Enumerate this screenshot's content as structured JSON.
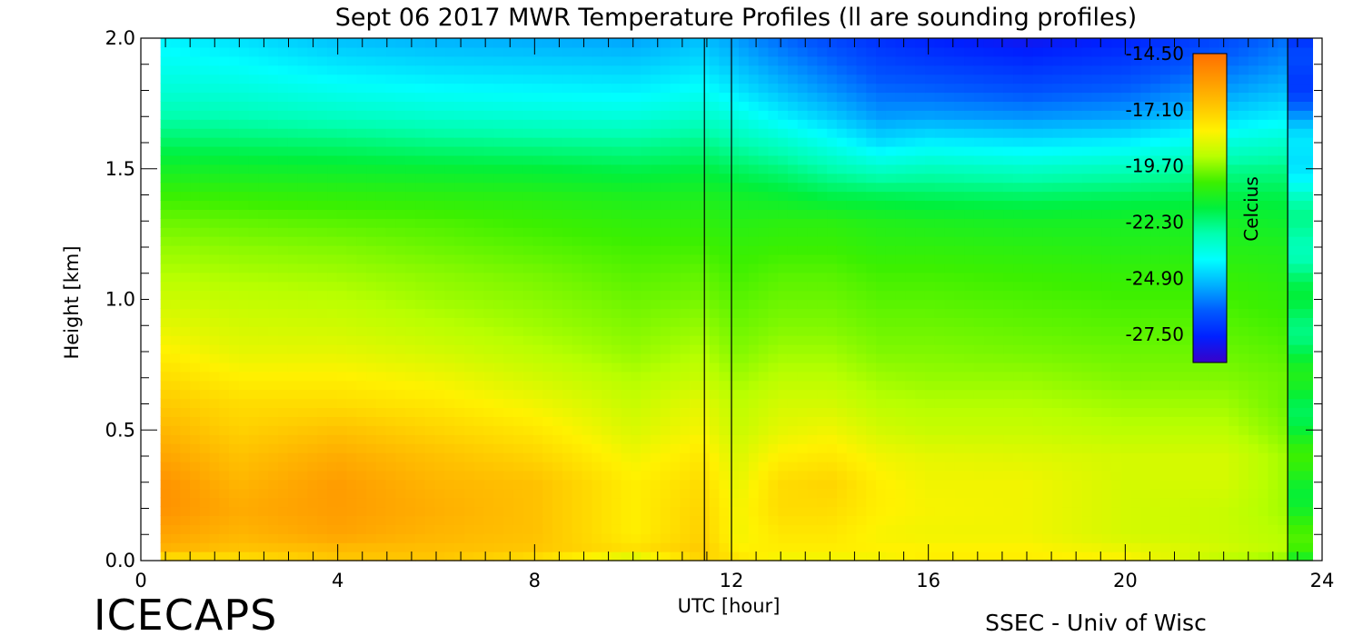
{
  "chart_data": {
    "type": "heatmap",
    "title": "Sept 06 2017 MWR Temperature Profiles (ll are sounding profiles)",
    "xlabel": "UTC [hour]",
    "ylabel": "Height [km]",
    "xlim": [
      0,
      24
    ],
    "ylim": [
      0,
      2.0
    ],
    "x_ticks": [
      "0",
      "4",
      "8",
      "12",
      "16",
      "20",
      "24"
    ],
    "y_ticks": [
      "0.0",
      "0.5",
      "1.0",
      "1.5",
      "2.0"
    ],
    "x_minor_step": 0.5,
    "y_minor_step": 0.1,
    "colorbar": {
      "label": "Celcius",
      "min": -28.8,
      "max": -14.5,
      "tick_labels": [
        "-14.50",
        "-17.10",
        "-19.70",
        "-22.30",
        "-24.90",
        "-27.50"
      ],
      "tick_values": [
        -14.5,
        -17.1,
        -19.7,
        -22.3,
        -24.9,
        -27.5
      ]
    },
    "sounding_times_hour": [
      11.45,
      12.0,
      23.3
    ],
    "data_start_hour": 0.4,
    "data_end_hour": 23.3,
    "value_units": "Celcius",
    "grid_x_hours": [
      0.4,
      2,
      4,
      6,
      8,
      10,
      11.4,
      12.1,
      13,
      14,
      15,
      16,
      18,
      20,
      22,
      23.3
    ],
    "grid_y_km": [
      0.0,
      0.03,
      0.1,
      0.2,
      0.3,
      0.4,
      0.5,
      0.6,
      0.7,
      0.8,
      0.9,
      1.0,
      1.1,
      1.2,
      1.3,
      1.4,
      1.5,
      1.6,
      1.7,
      1.8,
      1.9,
      2.0
    ],
    "temperature_grid": [
      [
        -18.5,
        -18.0,
        -17.0,
        -17.0,
        -18.0,
        -20.0,
        -17.5,
        -17.5,
        -18.5,
        -18.5,
        -18.5,
        -18.0,
        -18.0,
        -18.0,
        -19.5,
        -20.0
      ],
      [
        -16.5,
        -17.0,
        -16.8,
        -16.8,
        -17.0,
        -17.5,
        -17.0,
        -18.0,
        -18.0,
        -18.0,
        -18.0,
        -18.0,
        -18.0,
        -18.3,
        -18.8,
        -19.2
      ],
      [
        -16.0,
        -16.5,
        -16.0,
        -16.5,
        -16.8,
        -18.0,
        -17.2,
        -18.3,
        -17.8,
        -17.8,
        -18.2,
        -18.3,
        -18.3,
        -18.8,
        -19.0,
        -19.3
      ],
      [
        -15.5,
        -16.2,
        -15.8,
        -16.3,
        -16.8,
        -18.0,
        -17.3,
        -18.3,
        -17.5,
        -17.5,
        -18.0,
        -18.2,
        -18.3,
        -18.8,
        -19.0,
        -19.5
      ],
      [
        -15.5,
        -16.5,
        -15.8,
        -16.5,
        -16.8,
        -18.0,
        -17.5,
        -18.5,
        -17.5,
        -17.3,
        -18.0,
        -18.3,
        -18.3,
        -18.8,
        -18.8,
        -19.5
      ],
      [
        -16.0,
        -16.8,
        -16.2,
        -16.8,
        -17.3,
        -18.3,
        -17.8,
        -18.7,
        -18.0,
        -17.8,
        -18.3,
        -18.5,
        -18.6,
        -18.8,
        -18.8,
        -19.5
      ],
      [
        -16.5,
        -17.2,
        -16.8,
        -17.3,
        -17.8,
        -18.7,
        -18.2,
        -19.0,
        -18.5,
        -18.3,
        -18.8,
        -19.0,
        -19.0,
        -19.2,
        -19.2,
        -19.8
      ],
      [
        -17.0,
        -17.5,
        -17.5,
        -17.8,
        -18.3,
        -19.0,
        -18.5,
        -19.2,
        -18.8,
        -18.8,
        -19.2,
        -19.3,
        -19.3,
        -19.5,
        -19.5,
        -20.0
      ],
      [
        -17.5,
        -18.0,
        -18.0,
        -18.3,
        -18.8,
        -19.3,
        -19.0,
        -19.5,
        -19.2,
        -19.2,
        -19.5,
        -19.6,
        -19.6,
        -19.8,
        -19.8,
        -20.0
      ],
      [
        -18.0,
        -18.5,
        -18.5,
        -18.8,
        -19.2,
        -19.6,
        -19.3,
        -19.8,
        -19.5,
        -19.5,
        -19.8,
        -19.8,
        -19.9,
        -20.0,
        -20.0,
        -20.2
      ],
      [
        -18.5,
        -18.8,
        -18.9,
        -19.2,
        -19.5,
        -19.8,
        -19.6,
        -20.0,
        -19.8,
        -19.8,
        -20.0,
        -20.0,
        -20.1,
        -20.2,
        -20.2,
        -20.4
      ],
      [
        -18.9,
        -19.1,
        -19.2,
        -19.5,
        -19.7,
        -20.0,
        -19.9,
        -20.2,
        -20.0,
        -20.0,
        -20.2,
        -20.2,
        -20.3,
        -20.4,
        -20.4,
        -20.6
      ],
      [
        -19.3,
        -19.4,
        -19.5,
        -19.7,
        -19.9,
        -20.2,
        -20.1,
        -20.4,
        -20.2,
        -20.2,
        -20.4,
        -20.4,
        -20.5,
        -20.6,
        -20.6,
        -20.8
      ],
      [
        -19.6,
        -19.7,
        -19.8,
        -20.0,
        -20.2,
        -20.4,
        -20.4,
        -20.6,
        -20.5,
        -20.5,
        -20.7,
        -20.7,
        -20.8,
        -20.9,
        -20.9,
        -21.0
      ],
      [
        -20.0,
        -20.1,
        -20.2,
        -20.3,
        -20.5,
        -20.7,
        -20.7,
        -20.9,
        -20.8,
        -20.8,
        -21.0,
        -21.1,
        -21.2,
        -21.2,
        -21.2,
        -21.4
      ],
      [
        -20.5,
        -20.6,
        -20.7,
        -20.8,
        -20.9,
        -21.1,
        -21.1,
        -21.3,
        -21.5,
        -21.8,
        -21.9,
        -22.0,
        -22.1,
        -22.0,
        -21.8,
        -21.8
      ],
      [
        -21.2,
        -21.3,
        -21.4,
        -21.5,
        -21.6,
        -21.8,
        -21.7,
        -22.0,
        -22.3,
        -22.8,
        -23.2,
        -23.0,
        -23.2,
        -23.0,
        -22.5,
        -22.4
      ],
      [
        -22.0,
        -22.1,
        -22.2,
        -22.4,
        -22.5,
        -22.6,
        -22.4,
        -22.8,
        -23.2,
        -23.8,
        -24.5,
        -24.2,
        -24.4,
        -24.2,
        -23.5,
        -23.2
      ],
      [
        -22.8,
        -22.9,
        -23.1,
        -23.3,
        -23.4,
        -23.5,
        -23.2,
        -23.6,
        -24.2,
        -24.8,
        -25.5,
        -25.4,
        -25.6,
        -25.4,
        -24.6,
        -24.2
      ],
      [
        -23.4,
        -23.5,
        -23.8,
        -24.0,
        -24.1,
        -24.2,
        -23.9,
        -24.4,
        -25.0,
        -25.6,
        -26.2,
        -26.3,
        -26.6,
        -26.3,
        -25.5,
        -25.0
      ],
      [
        -23.8,
        -24.0,
        -24.4,
        -24.6,
        -24.7,
        -24.8,
        -24.5,
        -25.0,
        -25.6,
        -26.2,
        -26.8,
        -27.0,
        -27.3,
        -27.0,
        -26.2,
        -25.6
      ],
      [
        -24.2,
        -24.5,
        -25.0,
        -25.2,
        -25.3,
        -25.4,
        -25.0,
        -25.5,
        -26.2,
        -26.8,
        -27.3,
        -27.6,
        -28.0,
        -27.6,
        -26.8,
        -26.1
      ]
    ]
  },
  "branding": {
    "left": "ICECAPS",
    "right": "SSEC - Univ of Wisc"
  },
  "palette": {
    "stops": [
      "#ff6f00",
      "#ff9800",
      "#ffc400",
      "#fff200",
      "#b8ff00",
      "#3cf000",
      "#00f03c",
      "#00ffb0",
      "#00ffff",
      "#00b0ff",
      "#005aff",
      "#0020ff",
      "#3a00c8"
    ],
    "frame": "#000000",
    "background": "#ffffff"
  }
}
